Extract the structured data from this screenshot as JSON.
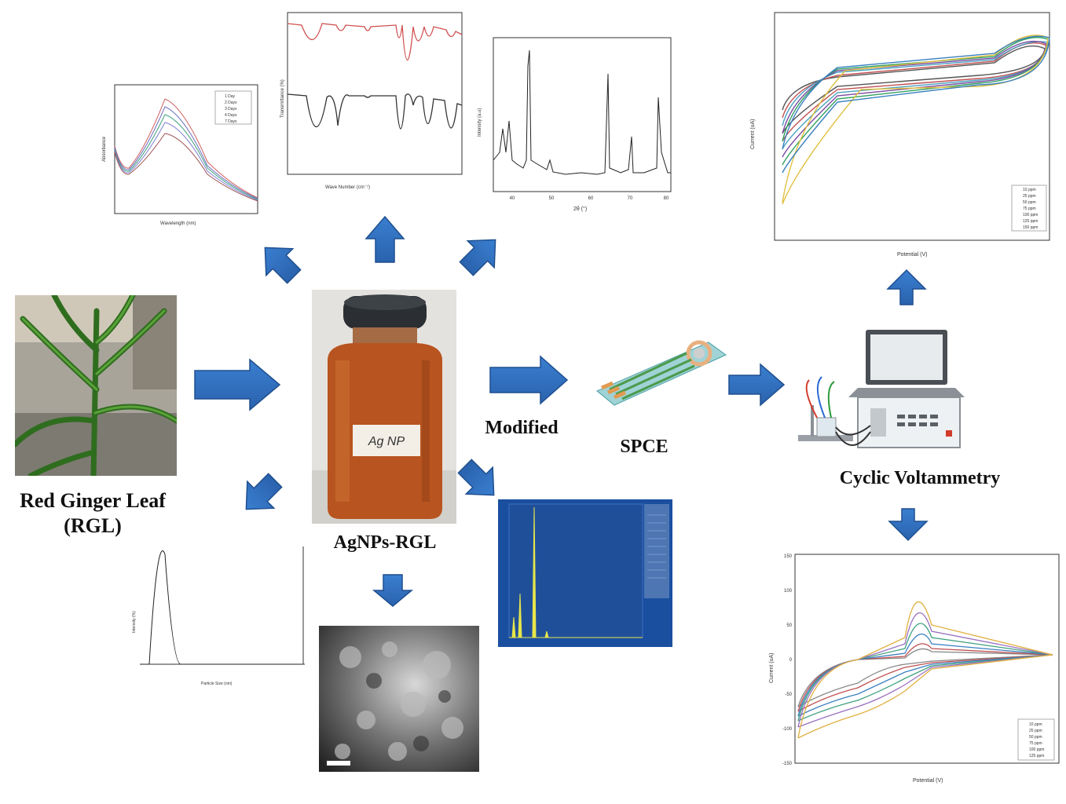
{
  "labels": {
    "rgl": "Red Ginger Leaf",
    "rgl_abbr": "(RGL)",
    "agnps": "AgNPs-RGL",
    "modified": "Modified",
    "spce": "SPCE",
    "cv": "Cyclic Voltammetry",
    "bottle_tag": "Ag NP"
  },
  "colors": {
    "arrow": "#2f6fbf",
    "arrow_dark": "#1f4f8f",
    "liquid": "#b8541f",
    "eds_bg": "#1a4fa0",
    "eds_peak": "#e6e64a"
  },
  "uv": {
    "ylabel": "Absorbance",
    "xlabel": "Wavelength (nm)",
    "legend": [
      "1 Day",
      "2 Days",
      "3 Days",
      "4 Days",
      "7 Days"
    ]
  },
  "ftir": {
    "ylabel": "Transmittance (%)",
    "xlabel": "Wave Number (cm⁻¹)"
  },
  "xrd": {
    "ylabel": "Intensity (a.u)",
    "xlabel": "2θ (°)",
    "xticks": [
      "40",
      "50",
      "60",
      "70",
      "80"
    ]
  },
  "cv_top": {
    "ylabel": "Current (uA)",
    "xlabel": "Potential (V)",
    "legend": [
      "10 ppm",
      "25 ppm",
      "50 ppm",
      "75 ppm",
      "100 ppm",
      "125 ppm",
      "150 ppm"
    ]
  },
  "cv_bottom": {
    "ylabel": "Current (uA)",
    "xlabel": "Potential (V)",
    "yticks": [
      "150",
      "100",
      "50",
      "0",
      "-50",
      "-100",
      "-150"
    ],
    "legend": [
      "10 ppm",
      "25 ppm",
      "50 ppm",
      "75 ppm",
      "100 ppm",
      "125 ppm"
    ]
  },
  "psa": {
    "ylabel": "Intensity (%)",
    "xlabel": "Particle Size (nm)"
  }
}
